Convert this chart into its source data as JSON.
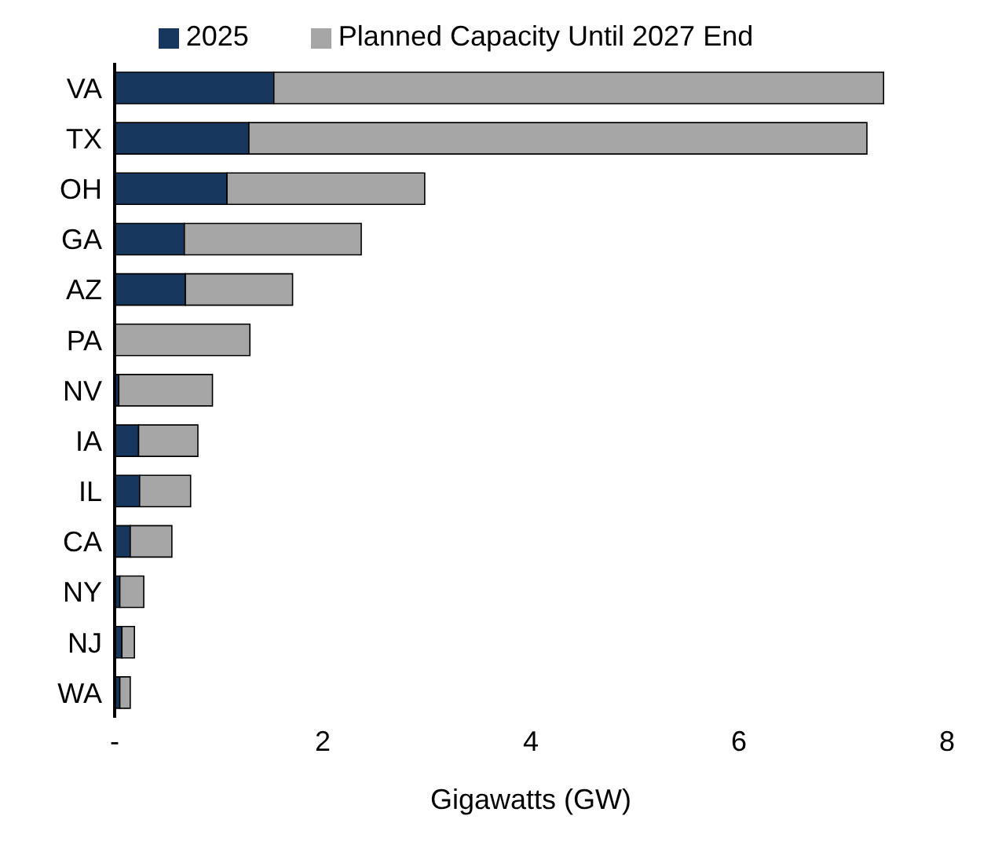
{
  "chart_data": {
    "type": "bar",
    "orientation": "horizontal",
    "stacked": true,
    "categories": [
      "VA",
      "TX",
      "OH",
      "GA",
      "AZ",
      "PA",
      "NV",
      "IA",
      "IL",
      "CA",
      "NY",
      "NJ",
      "WA"
    ],
    "series": [
      {
        "name": "2025",
        "color": "#17375e",
        "values": [
          1.53,
          1.29,
          1.08,
          0.67,
          0.68,
          0,
          0.04,
          0.23,
          0.24,
          0.15,
          0.05,
          0.07,
          0.05
        ]
      },
      {
        "name": "Planned Capacity Until 2027 End",
        "color": "#a6a6a6",
        "values": [
          5.86,
          5.94,
          1.9,
          1.7,
          1.03,
          1.3,
          0.9,
          0.57,
          0.49,
          0.4,
          0.23,
          0.12,
          0.1
        ]
      }
    ],
    "xlabel": "Gigawatts (GW)",
    "xlim": [
      0,
      8
    ],
    "xticks": [
      {
        "value": 0,
        "label": "-"
      },
      2,
      4,
      6,
      8
    ],
    "grid": false,
    "legend": "top"
  }
}
